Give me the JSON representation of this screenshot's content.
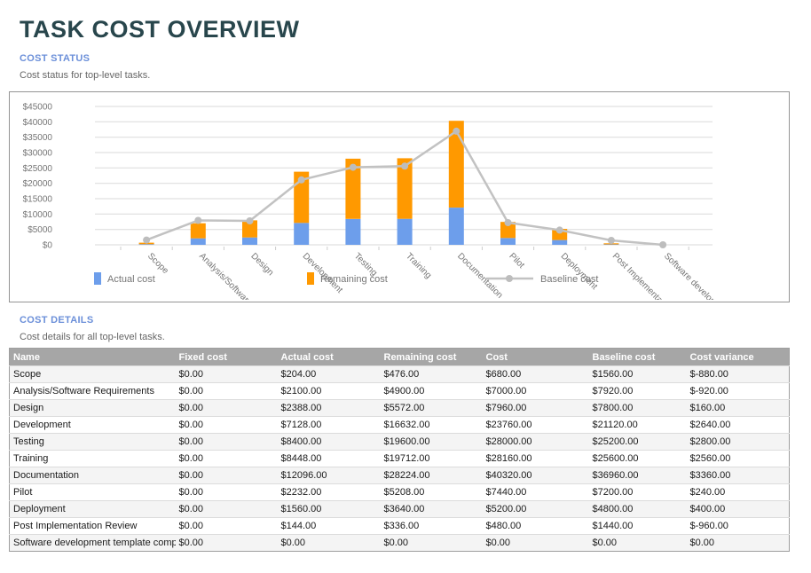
{
  "header": {
    "title": "TASK COST OVERVIEW"
  },
  "cost_status": {
    "heading": "COST STATUS",
    "description": "Cost status for top-level tasks."
  },
  "cost_details": {
    "heading": "COST DETAILS",
    "description": "Cost details for all top-level tasks."
  },
  "colors": {
    "title_color": "#28464C",
    "section_heading_color": "#6B8FD9",
    "table_header_bg": "#A6A6A6",
    "actual_cost_color": "#6D9EEB",
    "remaining_cost_color": "#FF9900",
    "baseline_cost_color": "#C2C2C2"
  },
  "chart_data": {
    "type": "bar",
    "subtype": "stacked-bars-with-line-overlay",
    "title": "",
    "xlabel": "",
    "ylabel": "",
    "categories": [
      "Scope",
      "Analysis/Software Requirements",
      "Design",
      "Development",
      "Testing",
      "Training",
      "Documentation",
      "Pilot",
      "Deployment",
      "Post Implementation Review",
      "Software development template complete"
    ],
    "series": [
      {
        "name": "Actual cost",
        "type": "bar",
        "color": "#6D9EEB",
        "values": [
          204,
          2100,
          2388,
          7128,
          8400,
          8448,
          12096,
          2232,
          1560,
          144,
          0
        ]
      },
      {
        "name": "Remaining cost",
        "type": "bar",
        "color": "#FF9900",
        "values": [
          476,
          4900,
          5572,
          16632,
          19600,
          19712,
          28224,
          5208,
          3640,
          336,
          0
        ]
      },
      {
        "name": "Baseline cost",
        "type": "line",
        "color": "#C2C2C2",
        "marker_color": "#BDBDBD",
        "values": [
          1560,
          7920,
          7800,
          21120,
          25200,
          25600,
          36960,
          7200,
          4800,
          1440,
          0
        ]
      }
    ],
    "stacked": true,
    "ylim": [
      0,
      45000
    ],
    "ytick_step": 5000,
    "ytick_prefix": "$",
    "grid": true,
    "legend_position": "bottom-inside",
    "x_label_rotation_deg": 45
  },
  "table": {
    "columns": [
      "Name",
      "Fixed cost",
      "Actual cost",
      "Remaining cost",
      "Cost",
      "Baseline cost",
      "Cost variance"
    ],
    "rows": [
      [
        "Scope",
        "$0.00",
        "$204.00",
        "$476.00",
        "$680.00",
        "$1560.00",
        "$-880.00"
      ],
      [
        "Analysis/Software Requirements",
        "$0.00",
        "$2100.00",
        "$4900.00",
        "$7000.00",
        "$7920.00",
        "$-920.00"
      ],
      [
        "Design",
        "$0.00",
        "$2388.00",
        "$5572.00",
        "$7960.00",
        "$7800.00",
        "$160.00"
      ],
      [
        "Development",
        "$0.00",
        "$7128.00",
        "$16632.00",
        "$23760.00",
        "$21120.00",
        "$2640.00"
      ],
      [
        "Testing",
        "$0.00",
        "$8400.00",
        "$19600.00",
        "$28000.00",
        "$25200.00",
        "$2800.00"
      ],
      [
        "Training",
        "$0.00",
        "$8448.00",
        "$19712.00",
        "$28160.00",
        "$25600.00",
        "$2560.00"
      ],
      [
        "Documentation",
        "$0.00",
        "$12096.00",
        "$28224.00",
        "$40320.00",
        "$36960.00",
        "$3360.00"
      ],
      [
        "Pilot",
        "$0.00",
        "$2232.00",
        "$5208.00",
        "$7440.00",
        "$7200.00",
        "$240.00"
      ],
      [
        "Deployment",
        "$0.00",
        "$1560.00",
        "$3640.00",
        "$5200.00",
        "$4800.00",
        "$400.00"
      ],
      [
        "Post Implementation Review",
        "$0.00",
        "$144.00",
        "$336.00",
        "$480.00",
        "$1440.00",
        "$-960.00"
      ],
      [
        "Software development template complete",
        "$0.00",
        "$0.00",
        "$0.00",
        "$0.00",
        "$0.00",
        "$0.00"
      ]
    ]
  }
}
